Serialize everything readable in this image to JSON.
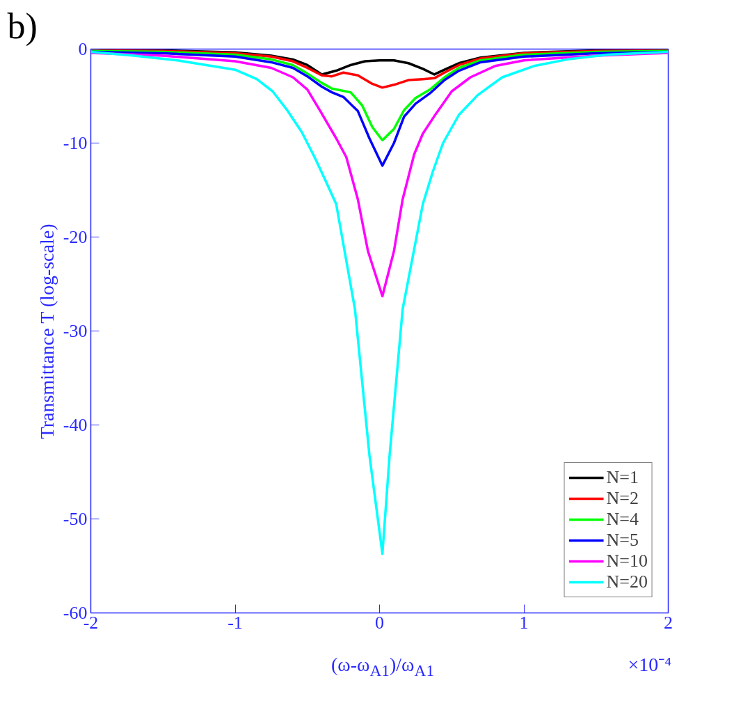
{
  "chart_data": {
    "type": "line",
    "xlabel": "(ω-ω$_{A1}$)/ω$_{A1}$",
    "ylabel": "Transmittance T (log-scale)",
    "annotations": [
      "b)",
      "×10⁻⁴"
    ],
    "xlim": [
      -2,
      2
    ],
    "ylim": [
      -60,
      0
    ],
    "xticks": [
      -2,
      -1,
      0,
      1,
      2
    ],
    "yticks": [
      -60,
      -50,
      -40,
      -30,
      -20,
      -10,
      0
    ],
    "grid": false,
    "legend": "bottom right",
    "line_style": "solid",
    "marker": "none",
    "series": [
      {
        "name": "N=1",
        "color": "#000000",
        "x": [
          -2,
          -1.5,
          -1,
          -0.75,
          -0.6,
          -0.5,
          -0.4,
          -0.3,
          -0.2,
          -0.1,
          0,
          0.1,
          0.2,
          0.3,
          0.38,
          0.45,
          0.55,
          0.7,
          1,
          1.5,
          2
        ],
        "values": [
          -0.1,
          -0.15,
          -0.35,
          -0.7,
          -1.1,
          -1.7,
          -2.7,
          -2.3,
          -1.7,
          -1.3,
          -1.2,
          -1.2,
          -1.5,
          -2.1,
          -2.7,
          -2.2,
          -1.5,
          -0.9,
          -0.4,
          -0.15,
          -0.1
        ]
      },
      {
        "name": "N=2",
        "color": "#ff0000",
        "x": [
          -2,
          -1.5,
          -1,
          -0.75,
          -0.6,
          -0.5,
          -0.4,
          -0.33,
          -0.25,
          -0.15,
          -0.05,
          0.02,
          0.1,
          0.2,
          0.3,
          0.38,
          0.45,
          0.55,
          0.7,
          1,
          1.5,
          2
        ],
        "values": [
          -0.15,
          -0.2,
          -0.45,
          -0.8,
          -1.3,
          -2.0,
          -2.8,
          -2.9,
          -2.5,
          -2.8,
          -3.7,
          -4.1,
          -3.8,
          -3.3,
          -3.2,
          -3.1,
          -2.5,
          -1.7,
          -1.0,
          -0.45,
          -0.2,
          -0.15
        ]
      },
      {
        "name": "N=4",
        "color": "#00ff00",
        "x": [
          -2,
          -1.5,
          -1,
          -0.75,
          -0.6,
          -0.5,
          -0.4,
          -0.33,
          -0.2,
          -0.12,
          -0.05,
          0.02,
          0.1,
          0.17,
          0.25,
          0.35,
          0.45,
          0.55,
          0.7,
          1,
          1.5,
          2
        ],
        "values": [
          -0.2,
          -0.3,
          -0.6,
          -1.1,
          -1.7,
          -2.6,
          -3.6,
          -4.2,
          -4.6,
          -6.0,
          -8.3,
          -9.7,
          -8.5,
          -6.5,
          -5.2,
          -4.3,
          -3.0,
          -2.0,
          -1.2,
          -0.6,
          -0.3,
          -0.2
        ]
      },
      {
        "name": "N=5",
        "color": "#0000ff",
        "x": [
          -2,
          -1.5,
          -1,
          -0.75,
          -0.6,
          -0.5,
          -0.4,
          -0.33,
          -0.25,
          -0.15,
          -0.07,
          0.02,
          0.1,
          0.17,
          0.25,
          0.35,
          0.45,
          0.55,
          0.7,
          1,
          1.5,
          2
        ],
        "values": [
          -0.3,
          -0.45,
          -0.8,
          -1.4,
          -2.0,
          -2.9,
          -4.0,
          -4.6,
          -5.1,
          -6.6,
          -9.5,
          -12.4,
          -10.0,
          -7.2,
          -5.8,
          -4.7,
          -3.3,
          -2.3,
          -1.4,
          -0.8,
          -0.45,
          -0.3
        ]
      },
      {
        "name": "N=10",
        "color": "#ff00ff",
        "x": [
          -2,
          -1.5,
          -1,
          -0.75,
          -0.6,
          -0.5,
          -0.41,
          -0.3,
          -0.23,
          -0.15,
          -0.08,
          0.02,
          0.1,
          0.16,
          0.24,
          0.3,
          0.39,
          0.5,
          0.63,
          0.8,
          1,
          1.5,
          2
        ],
        "values": [
          -0.4,
          -0.7,
          -1.3,
          -2.0,
          -3.0,
          -4.3,
          -6.6,
          -9.5,
          -11.5,
          -16.0,
          -21.5,
          -26.3,
          -21.5,
          -16.0,
          -11.2,
          -9.0,
          -6.9,
          -4.5,
          -3.0,
          -1.8,
          -1.2,
          -0.7,
          -0.4
        ]
      },
      {
        "name": "N=20",
        "color": "#00ffff",
        "x": [
          -2,
          -1.7,
          -1.4,
          -1,
          -0.85,
          -0.74,
          -0.64,
          -0.54,
          -0.45,
          -0.38,
          -0.3,
          -0.17,
          -0.07,
          0.02,
          0.07,
          0.16,
          0.3,
          0.37,
          0.44,
          0.55,
          0.68,
          0.85,
          1.07,
          1.3,
          1.58,
          2
        ],
        "values": [
          -0.3,
          -0.7,
          -1.2,
          -2.2,
          -3.2,
          -4.5,
          -6.5,
          -8.8,
          -11.5,
          -13.8,
          -16.5,
          -27.7,
          -43.2,
          -53.7,
          -43.2,
          -27.7,
          -16.5,
          -13.0,
          -10.0,
          -7.0,
          -4.9,
          -3.0,
          -1.8,
          -1.1,
          -0.6,
          -0.3
        ]
      }
    ]
  }
}
